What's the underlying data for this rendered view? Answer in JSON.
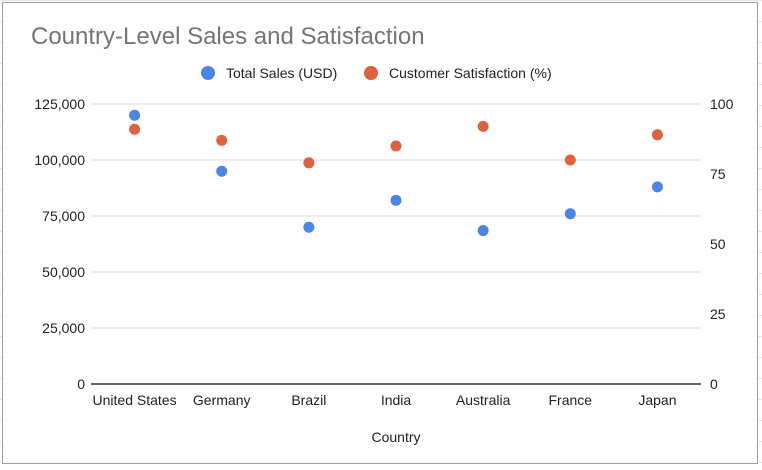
{
  "chart_data": {
    "type": "scatter",
    "title": "Country-Level Sales and Satisfaction",
    "xlabel": "Country",
    "ylabel": "",
    "ylabel_right": "",
    "categories": [
      "United States",
      "Germany",
      "Brazil",
      "India",
      "Australia",
      "France",
      "Japan"
    ],
    "ylim": [
      0,
      125000
    ],
    "yticks": [
      "0",
      "25,000",
      "50,000",
      "75,000",
      "100,000",
      "125,000"
    ],
    "ylim_right": [
      0,
      100
    ],
    "yticks_right": [
      "0",
      "25",
      "50",
      "75",
      "100"
    ],
    "grid": true,
    "legend_position": "top",
    "series": [
      {
        "name": "Total Sales (USD)",
        "axis": "left",
        "color": "#4a86e8",
        "values": [
          120000,
          95000,
          70000,
          82000,
          68500,
          76000,
          88000
        ]
      },
      {
        "name": "Customer Satisfaction (%)",
        "axis": "right",
        "color": "#e0613e",
        "values": [
          91,
          87,
          79,
          85,
          92,
          80,
          89
        ]
      }
    ]
  }
}
